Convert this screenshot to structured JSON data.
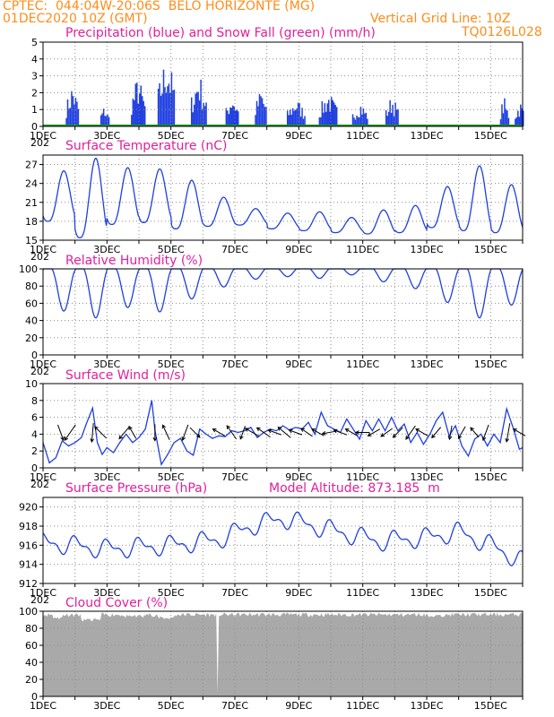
{
  "header": {
    "line1": "CPTEC:  044:04W-20:06S  BELO HORIZONTE (MG)",
    "line2_left": "01DEC2020 10Z (GMT)",
    "line2_right": "Vertical Grid Line: 10Z",
    "line3_right": "TQ0126L028",
    "cut_label": "202"
  },
  "colors": {
    "series": "#1f3fe0",
    "snow": "#1a9a1a",
    "accent": "#ff8c1a",
    "title": "#e0209a",
    "cloud": "#a9a9a9"
  },
  "chart_data": [
    {
      "id": "precip",
      "type": "bar",
      "title": "Precipitation (blue) and Snow Fall (green) (mm/h)",
      "x_tick_labels": [
        "1DEC",
        "3DEC",
        "5DEC",
        "7DEC",
        "9DEC",
        "11DEC",
        "13DEC",
        "15DEC"
      ],
      "x_range_days": [
        1,
        16
      ],
      "ylim": [
        0,
        5
      ],
      "y_ticks": [
        "0",
        "1",
        "2",
        "3",
        "4",
        "5"
      ],
      "episodes": [
        {
          "day": 1.9,
          "peak": 2.7,
          "width": 0.4
        },
        {
          "day": 2.9,
          "peak": 1.3,
          "width": 0.3
        },
        {
          "day": 3.95,
          "peak": 3.2,
          "width": 0.45
        },
        {
          "day": 4.85,
          "peak": 4.6,
          "width": 0.55
        },
        {
          "day": 5.85,
          "peak": 3.4,
          "width": 0.5
        },
        {
          "day": 6.9,
          "peak": 2.2,
          "width": 0.4
        },
        {
          "day": 7.8,
          "peak": 2.4,
          "width": 0.4
        },
        {
          "day": 8.9,
          "peak": 1.8,
          "width": 0.6
        },
        {
          "day": 9.9,
          "peak": 2.2,
          "width": 0.6
        },
        {
          "day": 10.9,
          "peak": 1.6,
          "width": 0.5
        },
        {
          "day": 11.9,
          "peak": 2.0,
          "width": 0.4
        },
        {
          "day": 15.4,
          "peak": 1.8,
          "width": 0.3
        },
        {
          "day": 15.9,
          "peak": 1.6,
          "width": 0.35
        }
      ],
      "snow": 0,
      "grid": true
    },
    {
      "id": "temp",
      "type": "line",
      "title": "Surface Temperature (nC)",
      "x_tick_labels": [
        "1DEC",
        "3DEC",
        "5DEC",
        "7DEC",
        "9DEC",
        "11DEC",
        "13DEC",
        "15DEC"
      ],
      "x_range_days": [
        1,
        16
      ],
      "ylim": [
        15,
        28.5
      ],
      "y_ticks": [
        "15",
        "18",
        "21",
        "24",
        "27"
      ],
      "y_tick_values": [
        15,
        18,
        21,
        24,
        27
      ],
      "min_value": 15.2,
      "max_value": 28.0,
      "daily_max": [
        26.0,
        28.0,
        26.5,
        26.3,
        24.5,
        21.8,
        20.0,
        19.3,
        19.5,
        18.6,
        19.8,
        20.5,
        23.5,
        26.8,
        23.8,
        24.5
      ],
      "daily_min": [
        18.0,
        15.4,
        17.5,
        17.8,
        16.8,
        17.2,
        17.4,
        16.8,
        16.5,
        16.2,
        16.0,
        16.2,
        17.0,
        16.5,
        16.2,
        16.0
      ],
      "grid": true
    },
    {
      "id": "rh",
      "type": "line",
      "title": "Relative Humidity (%)",
      "x_tick_labels": [
        "1DEC",
        "3DEC",
        "5DEC",
        "7DEC",
        "9DEC",
        "11DEC",
        "13DEC",
        "15DEC"
      ],
      "x_range_days": [
        1,
        16
      ],
      "ylim": [
        0,
        100
      ],
      "y_ticks": [
        "0",
        "20",
        "40",
        "60",
        "80",
        "100"
      ],
      "daily_min": [
        48,
        40,
        52,
        47,
        62,
        76,
        85,
        88,
        86,
        90,
        82,
        74,
        58,
        40,
        55,
        68
      ],
      "grid": true
    },
    {
      "id": "wind",
      "type": "line",
      "title": "Surface Wind (m/s)",
      "x_tick_labels": [
        "1DEC",
        "3DEC",
        "5DEC",
        "7DEC",
        "9DEC",
        "11DEC",
        "13DEC",
        "15DEC"
      ],
      "x_range_days": [
        1,
        16
      ],
      "ylim": [
        0,
        10
      ],
      "y_ticks": [
        "0",
        "2",
        "4",
        "6",
        "8",
        "10"
      ],
      "speed_points": [
        [
          1.0,
          3.0
        ],
        [
          1.2,
          0.6
        ],
        [
          1.4,
          1.2
        ],
        [
          1.6,
          3.2
        ],
        [
          1.8,
          2.6
        ],
        [
          2.0,
          3.0
        ],
        [
          2.2,
          3.6
        ],
        [
          2.35,
          5.2
        ],
        [
          2.55,
          7.1
        ],
        [
          2.7,
          3.0
        ],
        [
          2.85,
          1.6
        ],
        [
          3.0,
          2.4
        ],
        [
          3.2,
          1.8
        ],
        [
          3.4,
          3.0
        ],
        [
          3.6,
          4.0
        ],
        [
          3.8,
          3.0
        ],
        [
          4.0,
          3.6
        ],
        [
          4.2,
          4.6
        ],
        [
          4.4,
          8.0
        ],
        [
          4.5,
          4.5
        ],
        [
          4.7,
          0.4
        ],
        [
          4.9,
          1.6
        ],
        [
          5.1,
          3.0
        ],
        [
          5.3,
          3.5
        ],
        [
          5.5,
          2.0
        ],
        [
          5.7,
          1.5
        ],
        [
          5.9,
          4.6
        ],
        [
          6.1,
          4.0
        ],
        [
          6.3,
          3.5
        ],
        [
          6.5,
          3.8
        ],
        [
          6.7,
          3.7
        ],
        [
          6.9,
          4.4
        ],
        [
          7.1,
          4.2
        ],
        [
          7.3,
          4.4
        ],
        [
          7.5,
          4.8
        ],
        [
          7.7,
          3.6
        ],
        [
          7.9,
          4.2
        ],
        [
          8.1,
          4.6
        ],
        [
          8.3,
          4.4
        ],
        [
          8.5,
          5.0
        ],
        [
          8.7,
          4.5
        ],
        [
          8.9,
          4.8
        ],
        [
          9.1,
          4.6
        ],
        [
          9.3,
          5.4
        ],
        [
          9.5,
          4.0
        ],
        [
          9.7,
          6.6
        ],
        [
          9.9,
          5.0
        ],
        [
          10.1,
          4.6
        ],
        [
          10.3,
          4.2
        ],
        [
          10.5,
          5.8
        ],
        [
          10.7,
          4.6
        ],
        [
          10.9,
          3.4
        ],
        [
          11.1,
          5.6
        ],
        [
          11.3,
          4.4
        ],
        [
          11.5,
          5.8
        ],
        [
          11.7,
          4.4
        ],
        [
          11.9,
          6.0
        ],
        [
          12.1,
          4.4
        ],
        [
          12.3,
          5.2
        ],
        [
          12.5,
          3.0
        ],
        [
          12.7,
          4.2
        ],
        [
          12.9,
          2.8
        ],
        [
          13.1,
          4.0
        ],
        [
          13.3,
          5.6
        ],
        [
          13.5,
          6.6
        ],
        [
          13.7,
          3.8
        ],
        [
          13.9,
          5.0
        ],
        [
          14.1,
          2.6
        ],
        [
          14.3,
          1.4
        ],
        [
          14.5,
          3.4
        ],
        [
          14.7,
          4.0
        ],
        [
          14.9,
          2.6
        ],
        [
          15.1,
          4.0
        ],
        [
          15.3,
          3.0
        ],
        [
          15.5,
          7.0
        ],
        [
          15.7,
          4.8
        ],
        [
          15.9,
          2.2
        ],
        [
          16.0,
          2.4
        ]
      ],
      "arrows": [
        {
          "day": 1.55,
          "speed": 4.0,
          "dir": 160
        },
        {
          "day": 1.85,
          "speed": 5.0,
          "dir": 215
        },
        {
          "day": 2.55,
          "speed": 5.0,
          "dir": 185
        },
        {
          "day": 2.8,
          "speed": 4.0,
          "dir": 315
        },
        {
          "day": 3.55,
          "speed": 4.0,
          "dir": 220
        },
        {
          "day": 3.8,
          "speed": 3.0,
          "dir": 330
        },
        {
          "day": 4.5,
          "speed": 4.0,
          "dir": 180
        },
        {
          "day": 4.85,
          "speed": 4.0,
          "dir": 335
        },
        {
          "day": 5.45,
          "speed": 4.0,
          "dir": 200
        },
        {
          "day": 5.75,
          "speed": 3.0,
          "dir": 135
        },
        {
          "day": 6.5,
          "speed": 3.0,
          "dir": 300
        },
        {
          "day": 6.9,
          "speed": 4.0,
          "dir": 325
        },
        {
          "day": 7.25,
          "speed": 3.0,
          "dir": 200
        },
        {
          "day": 7.55,
          "speed": 4.0,
          "dir": 300
        },
        {
          "day": 7.9,
          "speed": 4.0,
          "dir": 305
        },
        {
          "day": 8.25,
          "speed": 3.0,
          "dir": 290
        },
        {
          "day": 8.55,
          "speed": 4.0,
          "dir": 310
        },
        {
          "day": 8.9,
          "speed": 3.0,
          "dir": 290
        },
        {
          "day": 9.25,
          "speed": 3.0,
          "dir": 305
        },
        {
          "day": 9.6,
          "speed": 3.0,
          "dir": 300
        },
        {
          "day": 9.95,
          "speed": 3.0,
          "dir": 260
        },
        {
          "day": 10.3,
          "speed": 3.0,
          "dir": 290
        },
        {
          "day": 10.65,
          "speed": 3.0,
          "dir": 300
        },
        {
          "day": 11.0,
          "speed": 3.0,
          "dir": 270
        },
        {
          "day": 11.35,
          "speed": 3.0,
          "dir": 240
        },
        {
          "day": 11.75,
          "speed": 3.0,
          "dir": 235
        },
        {
          "day": 12.1,
          "speed": 3.0,
          "dir": 225
        },
        {
          "day": 12.5,
          "speed": 4.0,
          "dir": 215
        },
        {
          "day": 12.85,
          "speed": 3.0,
          "dir": 300
        },
        {
          "day": 13.3,
          "speed": 3.0,
          "dir": 220
        },
        {
          "day": 13.75,
          "speed": 3.0,
          "dir": 190
        },
        {
          "day": 14.1,
          "speed": 3.0,
          "dir": 210
        },
        {
          "day": 14.5,
          "speed": 2.5,
          "dir": 320
        },
        {
          "day": 14.85,
          "speed": 4.0,
          "dir": 200
        },
        {
          "day": 15.55,
          "speed": 5.0,
          "dir": 190
        },
        {
          "day": 15.9,
          "speed": 3.0,
          "dir": 300
        }
      ],
      "grid": true
    },
    {
      "id": "pressure",
      "type": "line",
      "title": "Surface Pressure (hPa)",
      "annotation": "Model Altitude: 873.185  m",
      "x_tick_labels": [
        "1DEC",
        "3DEC",
        "5DEC",
        "7DEC",
        "9DEC",
        "11DEC",
        "13DEC",
        "15DEC"
      ],
      "x_range_days": [
        1,
        16
      ],
      "ylim": [
        912,
        921
      ],
      "y_ticks": [
        "912",
        "914",
        "916",
        "918",
        "920"
      ],
      "y_tick_values": [
        912,
        914,
        916,
        918,
        920
      ],
      "trend": [
        [
          1,
          916.3
        ],
        [
          3,
          915.6
        ],
        [
          5,
          916.0
        ],
        [
          6.5,
          916.6
        ],
        [
          7.5,
          918.0
        ],
        [
          8.5,
          918.8
        ],
        [
          10,
          917.6
        ],
        [
          11.5,
          916.4
        ],
        [
          13,
          916.8
        ],
        [
          14,
          917.4
        ],
        [
          15,
          916.0
        ],
        [
          16,
          914.3
        ]
      ],
      "amplitude": 2.4,
      "grid": true
    },
    {
      "id": "cloud",
      "type": "area",
      "title": "Cloud Cover (%)",
      "x_tick_labels": [
        "1DEC",
        "3DEC",
        "5DEC",
        "7DEC",
        "9DEC",
        "11DEC",
        "13DEC",
        "15DEC"
      ],
      "x_range_days": [
        1,
        16
      ],
      "ylim": [
        0,
        100
      ],
      "y_ticks": [
        "0",
        "20",
        "40",
        "60",
        "80",
        "100"
      ],
      "typical_value": 96,
      "dips": [
        [
          1.3,
          1.6,
          90
        ],
        [
          2.2,
          2.8,
          88
        ],
        [
          3.5,
          4.2,
          92
        ],
        [
          4.6,
          5.1,
          90
        ],
        [
          6.45,
          6.5,
          0
        ],
        [
          13.0,
          13.6,
          93
        ]
      ],
      "grid": true
    }
  ]
}
